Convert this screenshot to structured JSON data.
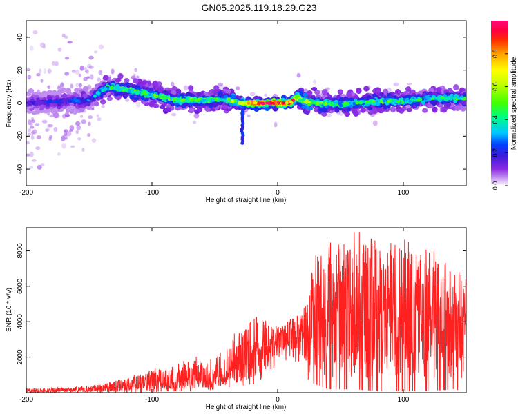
{
  "page_title": "GN05.2025.119.18.29.G23",
  "chart_data": [
    {
      "type": "heatmap",
      "xlabel": "Height of straight line (km)",
      "ylabel": "Frequency (Hz)",
      "xlim": [
        -200,
        150
      ],
      "ylim": [
        -50,
        50
      ],
      "x_ticks": [
        -200,
        -100,
        0,
        100
      ],
      "y_ticks": [
        -40,
        -20,
        0,
        20,
        40
      ],
      "colorbar": {
        "label": "Normalized spectral amplitude",
        "range": [
          0,
          1
        ],
        "ticks": [
          0.0,
          0.2,
          0.4,
          0.6,
          0.8
        ],
        "colormap": [
          "#ffffff",
          "#d7b7f5",
          "#8a2be2",
          "#3b1bd9",
          "#0040ff",
          "#00c8ff",
          "#00ff80",
          "#40ff00",
          "#c8ff00",
          "#ffff00",
          "#ffa000",
          "#ff3000",
          "#ff0040",
          "#ff0a78"
        ]
      },
      "ridge": {
        "x": [
          -200,
          -175,
          -150,
          -135,
          -120,
          -100,
          -80,
          -60,
          -40,
          -30,
          -20,
          -10,
          0,
          10,
          15,
          20,
          30,
          40,
          50,
          60,
          80,
          100,
          120,
          150
        ],
        "y": [
          0,
          1,
          2,
          10,
          8,
          5,
          2,
          2,
          2,
          0,
          0,
          0,
          0,
          0,
          4,
          1,
          0,
          0,
          -1,
          0,
          1,
          1,
          3,
          3
        ],
        "peak_amplitude": [
          0.15,
          0.2,
          0.25,
          0.4,
          0.45,
          0.45,
          0.5,
          0.45,
          0.45,
          0.7,
          0.9,
          0.95,
          1.0,
          0.9,
          0.7,
          0.6,
          0.5,
          0.45,
          0.4,
          0.4,
          0.45,
          0.4,
          0.4,
          0.4
        ]
      },
      "features": [
        {
          "x": -28,
          "y_from": -5,
          "y_to": -25
        },
        {
          "x_from": -210,
          "x_to": -150,
          "y_from": -50,
          "y_to": 50
        }
      ]
    },
    {
      "type": "line",
      "xlabel": "Height of straight line (km)",
      "ylabel": "SNR (10 * v/v)",
      "xlim": [
        -200,
        150
      ],
      "ylim": [
        0,
        9300
      ],
      "x_ticks": [
        -200,
        -100,
        0,
        100
      ],
      "y_ticks": [
        2000,
        4000,
        6000,
        8000
      ],
      "color": "#ff2020",
      "series": [
        {
          "envelope_x": [
            -200,
            -175,
            -150,
            -140,
            -125,
            -110,
            -100,
            -90,
            -75,
            -60,
            -50,
            -40,
            -30,
            -20,
            -10,
            0,
            10,
            20,
            25,
            30,
            40,
            60,
            80,
            100,
            120,
            140,
            150
          ],
          "mean": [
            100,
            120,
            170,
            230,
            330,
            420,
            520,
            600,
            640,
            850,
            920,
            1200,
            1800,
            2400,
            2800,
            2850,
            3200,
            3400,
            3800,
            4200,
            4300,
            4400,
            4400,
            4300,
            4200,
            4100,
            4100
          ],
          "max": [
            250,
            280,
            380,
            520,
            800,
            1100,
            1400,
            1500,
            1800,
            2200,
            2200,
            2700,
            3900,
            4800,
            4200,
            4000,
            4300,
            5000,
            7200,
            8300,
            8400,
            9200,
            9000,
            9100,
            8300,
            7600,
            7200
          ],
          "min": [
            0,
            0,
            0,
            0,
            0,
            0,
            50,
            80,
            100,
            150,
            200,
            300,
            400,
            500,
            1000,
            1800,
            2200,
            1800,
            700,
            500,
            200,
            200,
            100,
            100,
            100,
            200,
            200
          ]
        }
      ]
    }
  ]
}
